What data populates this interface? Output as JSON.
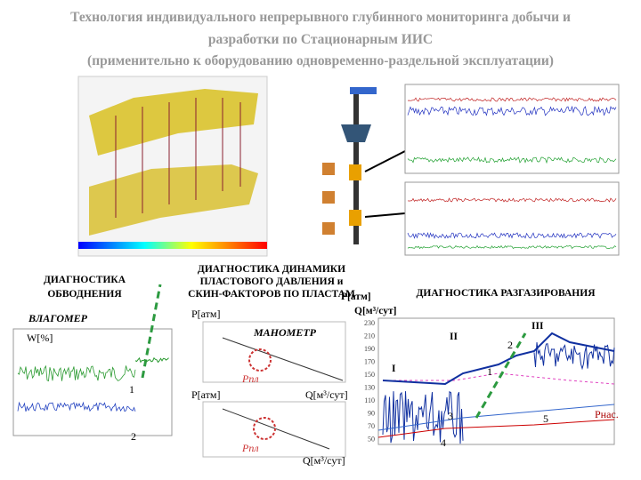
{
  "header": {
    "title": [
      "Технология индивидуального непрерывного глубинного мониторинга добычи и",
      "разработки по Стационарным ИИС",
      "(применительно к оборудованию одновременно-раздельной эксплуатации)"
    ]
  },
  "left": {
    "heading": [
      "ДИАГНОСТИКА",
      "ОБВОДНЕНИЯ"
    ],
    "device": "ВЛАГОМЕР",
    "axis": "W[%]",
    "markers": [
      "1",
      "2"
    ]
  },
  "middle": {
    "heading": [
      "ДИАГНОСТИКА ДИНАМИКИ",
      "ПЛАСТОВОГО ДАВЛЕНИЯ и",
      "СКИН-ФАКТОРОВ ПО ПЛАСТАМ"
    ],
    "top_axis": "P[атм]",
    "device": "МАНОМЕТР",
    "top_label": "Рпл",
    "bottom_axis": "P[атм]",
    "bottom_x_axis": "Q[м³/сут]",
    "bottom_label": "Рпл",
    "bottom_x_axis_2": "Q[м³/сут]"
  },
  "right": {
    "heading": "ДИАГНОСТИКА РАЗГАЗИРОВАНИЯ",
    "y_axis": "P[атм]",
    "x_axis": "Q[м³/сут]",
    "markers": [
      "I",
      "II",
      "III",
      "1",
      "2",
      "3",
      "4",
      "5"
    ],
    "saturation": "Рнас.",
    "yticks": [
      "230",
      "210",
      "190",
      "170",
      "150",
      "130",
      "110",
      "90",
      "70",
      "50"
    ]
  }
}
